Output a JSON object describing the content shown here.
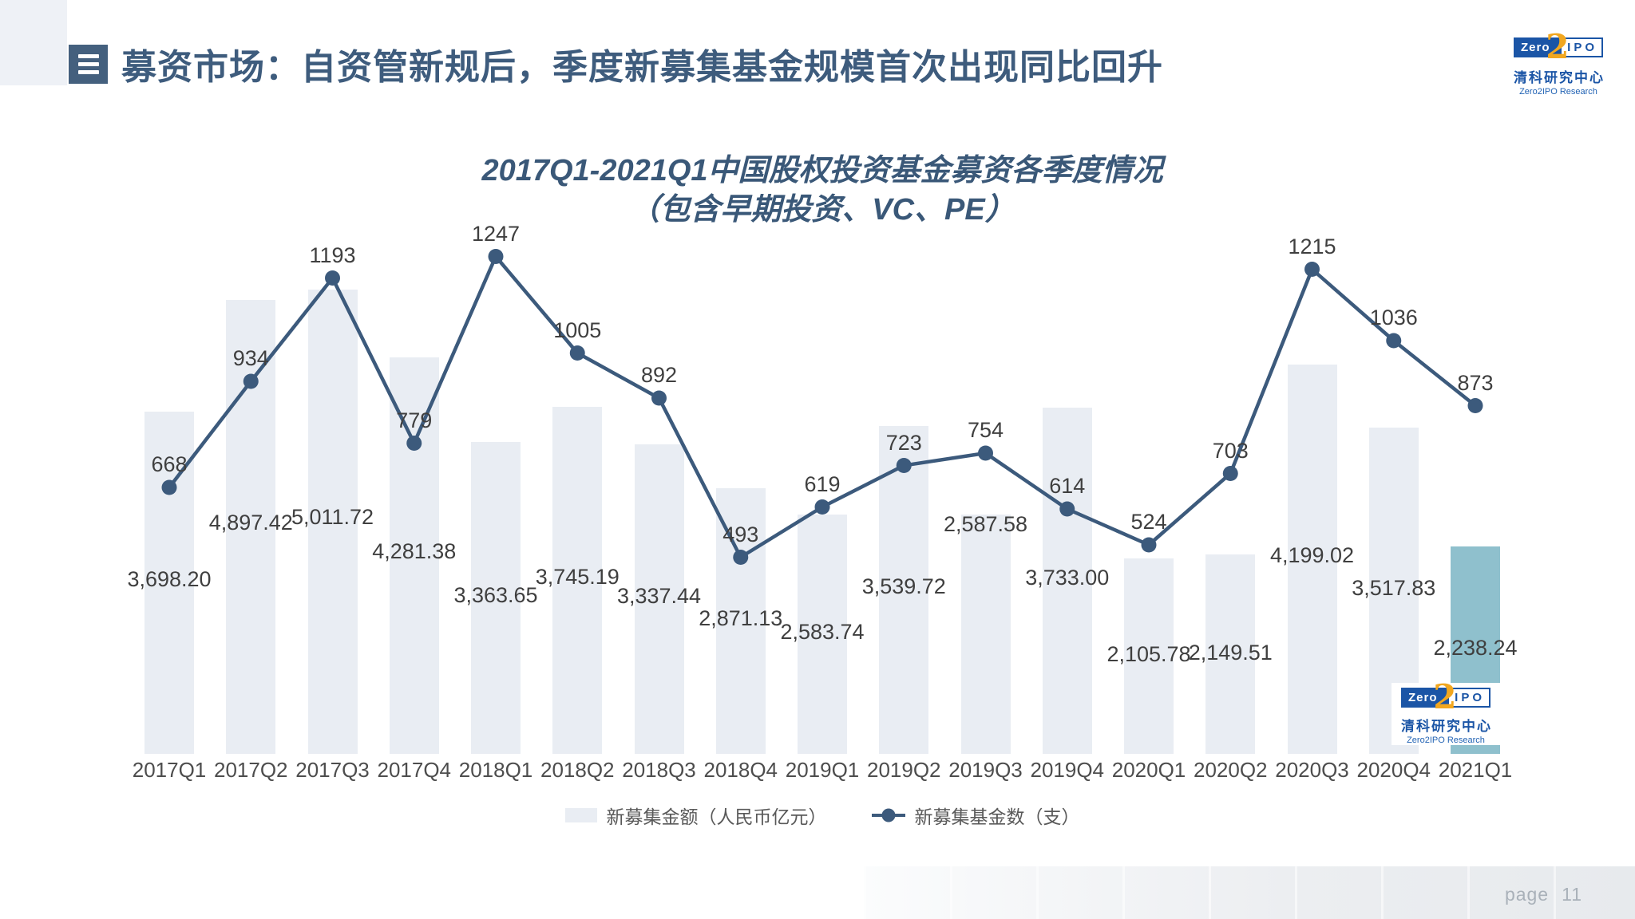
{
  "header": {
    "title": "募资市场：自资管新规后，季度新募集基金规模首次出现同比回升"
  },
  "logo": {
    "zero": "Zero",
    "two": "2",
    "ipo": "IPO",
    "cn": "清科研究中心",
    "en": "Zero2IPO Research"
  },
  "chart": {
    "title_line1": "2017Q1-2021Q1中国股权投资基金募资各季度情况",
    "title_line2": "（包含早期投资、VC、PE）"
  },
  "chart_data": {
    "type": "bar+line combo",
    "title": "2017Q1-2021Q1中国股权投资基金募资各季度情况（包含早期投资、VC、PE）",
    "categories": [
      "2017Q1",
      "2017Q2",
      "2017Q3",
      "2017Q4",
      "2018Q1",
      "2018Q2",
      "2018Q3",
      "2018Q4",
      "2019Q1",
      "2019Q2",
      "2019Q3",
      "2019Q4",
      "2020Q1",
      "2020Q2",
      "2020Q3",
      "2020Q4",
      "2021Q1"
    ],
    "series": [
      {
        "name": "新募集金额（人民币亿元）",
        "type": "bar",
        "values": [
          3698.2,
          4897.42,
          5011.72,
          4281.38,
          3363.65,
          3745.19,
          3337.44,
          2871.13,
          2583.74,
          3539.72,
          2587.58,
          3733.0,
          2105.78,
          2149.51,
          4199.02,
          3517.83,
          2238.24
        ],
        "label_format": "#,##0.00"
      },
      {
        "name": "新募集基金数（支）",
        "type": "line",
        "values": [
          668,
          934,
          1193,
          779,
          1247,
          1005,
          892,
          493,
          619,
          723,
          754,
          614,
          524,
          703,
          1215,
          1036,
          873
        ],
        "label_format": "0"
      }
    ],
    "highlight_category": "2021Q1",
    "layout": {
      "legend_position": "bottom-center",
      "gridlines": false,
      "value_axes_hidden": true,
      "bar_axis_max_hint": 5100,
      "line_axis_max_hint": 1300,
      "inside_top_bar_labels": [
        "2019Q3"
      ]
    }
  },
  "colors": {
    "bar": "#e9edf3",
    "bar_highlight": "#8fc0cd",
    "line": "#3c5a7c",
    "data_label": "#3f3f3f",
    "axis_label": "#4d4d4d",
    "header_title": "#3e5c7d",
    "chart_title": "#3a5878",
    "logo_blue": "#1b55a6",
    "logo_orange": "#f2a71f",
    "footer_text": "#a9b1b9"
  },
  "footer": {
    "page_label": "page",
    "page_number": "11"
  }
}
